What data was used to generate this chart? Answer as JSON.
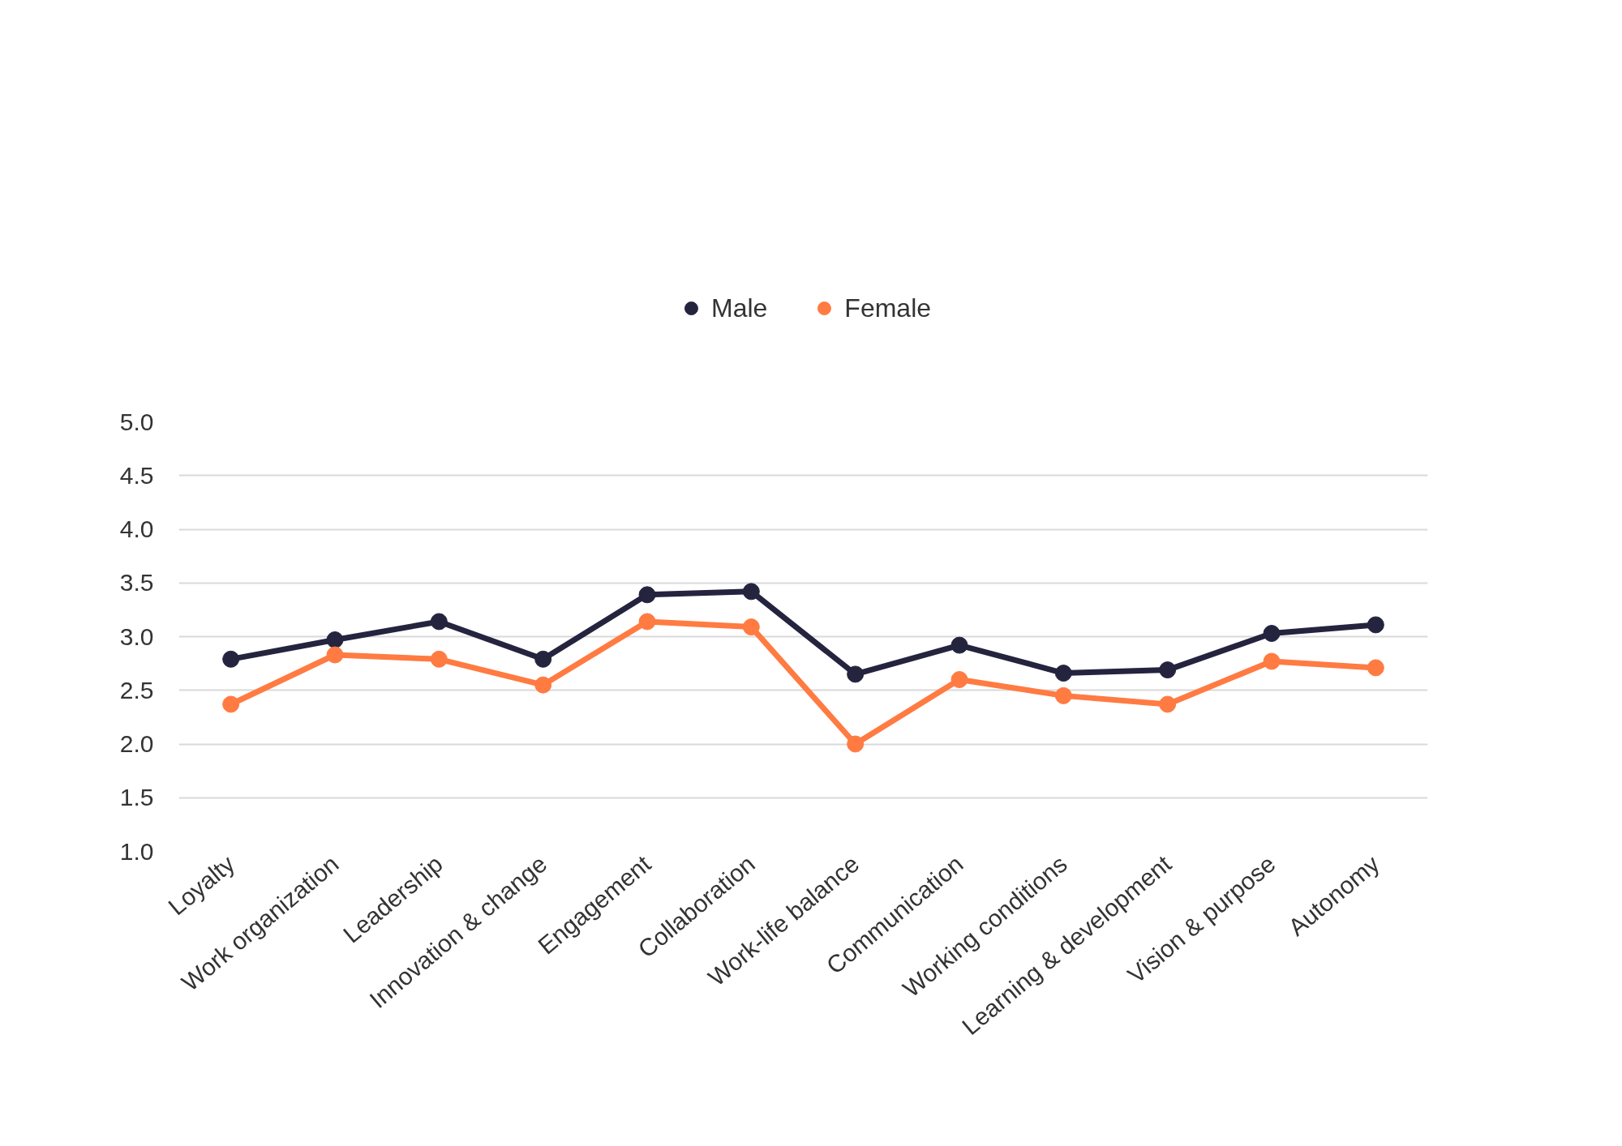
{
  "chart_data": {
    "type": "line",
    "categories": [
      "Loyalty",
      "Work organization",
      "Leadership",
      "Innovation & change",
      "Engagement",
      "Collaboration",
      "Work-life balance",
      "Communication",
      "Working conditions",
      "Learning & development",
      "Vision & purpose",
      "Autonomy"
    ],
    "series": [
      {
        "name": "Male",
        "color": "#24243f",
        "values": [
          2.79,
          2.97,
          3.14,
          2.79,
          3.39,
          3.42,
          2.65,
          2.92,
          2.66,
          2.69,
          3.03,
          3.11
        ]
      },
      {
        "name": "Female",
        "color": "#ff7b42",
        "values": [
          2.37,
          2.83,
          2.79,
          2.55,
          3.14,
          3.09,
          2.0,
          2.6,
          2.45,
          2.37,
          2.77,
          2.71
        ]
      }
    ],
    "ylim": [
      1.0,
      5.0
    ],
    "yticks": [
      {
        "value": 1.0,
        "label": "1.0"
      },
      {
        "value": 1.5,
        "label": "1.5"
      },
      {
        "value": 2.0,
        "label": "2.0"
      },
      {
        "value": 2.5,
        "label": "2.5"
      },
      {
        "value": 3.0,
        "label": "3.0"
      },
      {
        "value": 3.5,
        "label": "3.5"
      },
      {
        "value": 4.0,
        "label": "4.0"
      },
      {
        "value": 4.5,
        "label": "4.5"
      },
      {
        "value": 5.0,
        "label": "5.0"
      }
    ],
    "grid": "y",
    "legend": "top",
    "marker": "circle",
    "line_style": "solid"
  }
}
